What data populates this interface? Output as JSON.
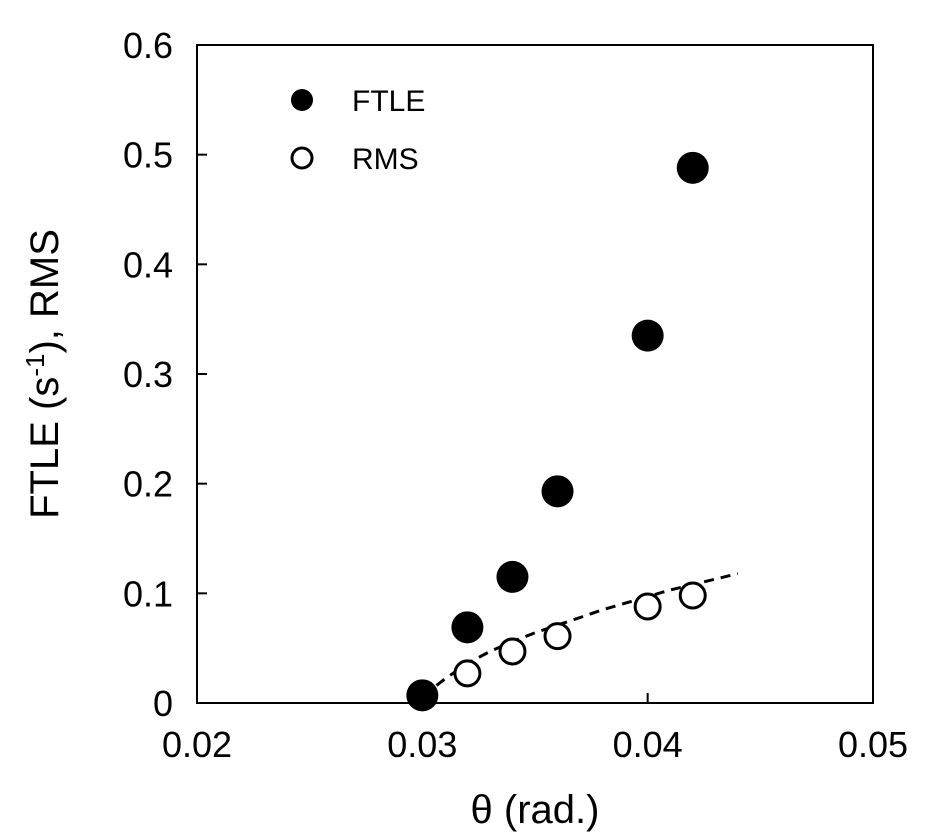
{
  "chart_data": {
    "type": "scatter",
    "xlabel": "θ (rad.)",
    "ylabel": {
      "prefix": "FTLE (s",
      "superscript": "-1",
      "suffix": "), RMS"
    },
    "xlim": [
      0.02,
      0.05
    ],
    "ylim": [
      0,
      0.6
    ],
    "x_ticks": [
      "0.02",
      "0.03",
      "0.04",
      "0.05"
    ],
    "y_ticks": [
      "0",
      "0.1",
      "0.2",
      "0.3",
      "0.4",
      "0.5",
      "0.6"
    ],
    "grid": false,
    "legend_position": "top-left",
    "series": [
      {
        "name": "FTLE",
        "marker": "filled-circle",
        "color": "#000000",
        "x": [
          0.03,
          0.032,
          0.034,
          0.036,
          0.04,
          0.042
        ],
        "y": [
          0.007,
          0.069,
          0.115,
          0.193,
          0.335,
          0.488
        ]
      },
      {
        "name": "RMS",
        "marker": "open-circle",
        "color": "#000000",
        "x": [
          0.032,
          0.034,
          0.036,
          0.04,
          0.042
        ],
        "y": [
          0.027,
          0.047,
          0.061,
          0.088,
          0.098
        ]
      }
    ],
    "fit_curve": {
      "style": "dashed",
      "color": "#000000",
      "x": [
        0.0301,
        0.0305,
        0.031,
        0.032,
        0.033,
        0.034,
        0.035,
        0.036,
        0.037,
        0.038,
        0.039,
        0.04,
        0.041,
        0.042,
        0.043,
        0.044
      ],
      "y": [
        0.005,
        0.014,
        0.022,
        0.036,
        0.047,
        0.056,
        0.064,
        0.071,
        0.078,
        0.085,
        0.091,
        0.097,
        0.103,
        0.108,
        0.113,
        0.118
      ]
    }
  }
}
